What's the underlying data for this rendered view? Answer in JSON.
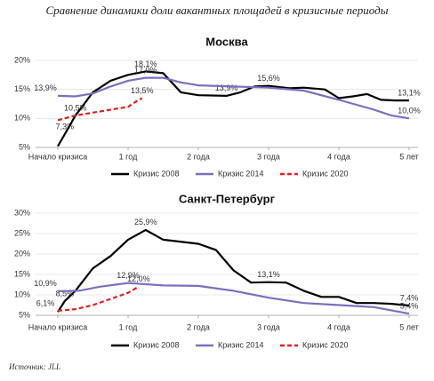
{
  "title": "Сравнение динамики доли вакантных площадей в кризисные периоды",
  "source": "Источник: JLL",
  "chart_data": [
    {
      "type": "line",
      "title": "Москва",
      "xlim": [
        0,
        5
      ],
      "xticks": [
        {
          "value": 0,
          "label": "Начало кризиса"
        },
        {
          "value": 1,
          "label": "1 год"
        },
        {
          "value": 2,
          "label": "2 года"
        },
        {
          "value": 3,
          "label": "3 года"
        },
        {
          "value": 4,
          "label": "4 года"
        },
        {
          "value": 5,
          "label": "5 лет"
        }
      ],
      "ylim": [
        5,
        20
      ],
      "yticks": [
        {
          "value": 5,
          "label": "5%"
        },
        {
          "value": 10,
          "label": "10%"
        },
        {
          "value": 15,
          "label": "15%"
        },
        {
          "value": 20,
          "label": "20%"
        }
      ],
      "grid": true,
      "legend": "bottom",
      "series": [
        {
          "name": "Кризис 2008",
          "color": "#000000",
          "dashed": false,
          "x": [
            0,
            0.1,
            0.25,
            0.5,
            0.75,
            1,
            1.25,
            1.5,
            1.75,
            2,
            2.4,
            2.6,
            2.8,
            3,
            3.3,
            3.5,
            3.8,
            4,
            4.2,
            4.4,
            4.6,
            4.8,
            5
          ],
          "values": [
            5.2,
            7.3,
            10.5,
            14.5,
            16.5,
            17.5,
            18.1,
            17.8,
            14.5,
            14,
            13.9,
            14.5,
            15.5,
            15.6,
            15.2,
            15.3,
            15,
            13.5,
            13.8,
            14.2,
            13.2,
            13.1,
            13.1
          ],
          "value_labels": [
            null,
            "7,3%",
            null,
            null,
            null,
            null,
            "18,1%",
            null,
            null,
            null,
            "13,9%",
            null,
            null,
            "15,6%",
            null,
            null,
            null,
            null,
            null,
            null,
            null,
            null,
            "13,1%"
          ]
        },
        {
          "name": "Кризис 2014",
          "color": "#7b6fbf",
          "dashed": false,
          "x": [
            0,
            0.25,
            0.5,
            0.75,
            1,
            1.25,
            1.5,
            1.75,
            2,
            2.5,
            3,
            3.5,
            4,
            4.5,
            4.75,
            5
          ],
          "values": [
            13.9,
            13.8,
            14.3,
            15.5,
            16.5,
            17.0,
            17.0,
            16.2,
            15.7,
            15.5,
            15.3,
            14.8,
            13.2,
            11.5,
            10.5,
            10.0
          ],
          "value_labels": [
            "13,9%",
            null,
            null,
            null,
            null,
            "17,0%",
            null,
            null,
            null,
            null,
            null,
            null,
            null,
            null,
            null,
            "10,0%"
          ]
        },
        {
          "name": "Кризис 2020",
          "color": "#e02020",
          "dashed": true,
          "x": [
            0,
            0.25,
            0.5,
            0.75,
            1,
            1.1,
            1.2
          ],
          "values": [
            9.7,
            10.5,
            11,
            11.5,
            12,
            12.8,
            13.5
          ],
          "value_labels": [
            null,
            "10,5%",
            null,
            null,
            null,
            null,
            "13,5%"
          ]
        }
      ]
    },
    {
      "type": "line",
      "title": "Санкт-Петербург",
      "xlim": [
        0,
        5
      ],
      "xticks": [
        {
          "value": 0,
          "label": "Начало кризиса"
        },
        {
          "value": 1,
          "label": "1 год"
        },
        {
          "value": 2,
          "label": "2 года"
        },
        {
          "value": 3,
          "label": "3 года"
        },
        {
          "value": 4,
          "label": "4 года"
        },
        {
          "value": 5,
          "label": "5 лет"
        }
      ],
      "ylim": [
        5,
        30
      ],
      "yticks": [
        {
          "value": 5,
          "label": "5%"
        },
        {
          "value": 10,
          "label": "10%"
        },
        {
          "value": 15,
          "label": "15%"
        },
        {
          "value": 20,
          "label": "20%"
        },
        {
          "value": 25,
          "label": "25%"
        },
        {
          "value": 30,
          "label": "30%"
        }
      ],
      "grid": true,
      "legend": "bottom",
      "series": [
        {
          "name": "Кризис 2008",
          "color": "#000000",
          "dashed": false,
          "x": [
            0,
            0.1,
            0.25,
            0.5,
            0.75,
            1,
            1.25,
            1.5,
            2,
            2.25,
            2.5,
            2.75,
            3,
            3.25,
            3.5,
            3.75,
            4,
            4.25,
            4.5,
            4.75,
            5
          ],
          "values": [
            5.8,
            8.5,
            11,
            16.5,
            19.5,
            23.5,
            25.9,
            23.5,
            22.5,
            21,
            16,
            13,
            13.1,
            13,
            11,
            9.5,
            9.5,
            8,
            8,
            7.8,
            7.4
          ],
          "value_labels": [
            null,
            "8,5%",
            null,
            null,
            null,
            null,
            "25,9%",
            null,
            null,
            null,
            null,
            null,
            "13,1%",
            null,
            null,
            null,
            null,
            null,
            null,
            null,
            "7,4%"
          ]
        },
        {
          "name": "Кризис 2014",
          "color": "#7b6fbf",
          "dashed": false,
          "x": [
            0,
            0.3,
            0.6,
            1,
            1.5,
            2,
            2.5,
            3,
            3.5,
            4,
            4.5,
            5
          ],
          "values": [
            10.9,
            11.0,
            12,
            12.9,
            12.3,
            12.2,
            11,
            9.3,
            8,
            7.5,
            7,
            5.4
          ],
          "value_labels": [
            "10,9%",
            null,
            null,
            "12,9%",
            null,
            null,
            null,
            null,
            null,
            null,
            null,
            "5,4%"
          ]
        },
        {
          "name": "Кризис 2020",
          "color": "#e02020",
          "dashed": true,
          "x": [
            0,
            0.25,
            0.5,
            0.75,
            1,
            1.15
          ],
          "values": [
            6.1,
            6.5,
            7.5,
            9,
            10.5,
            12.0
          ],
          "value_labels": [
            "6,1%",
            null,
            null,
            null,
            null,
            "12,0%"
          ]
        }
      ]
    }
  ]
}
